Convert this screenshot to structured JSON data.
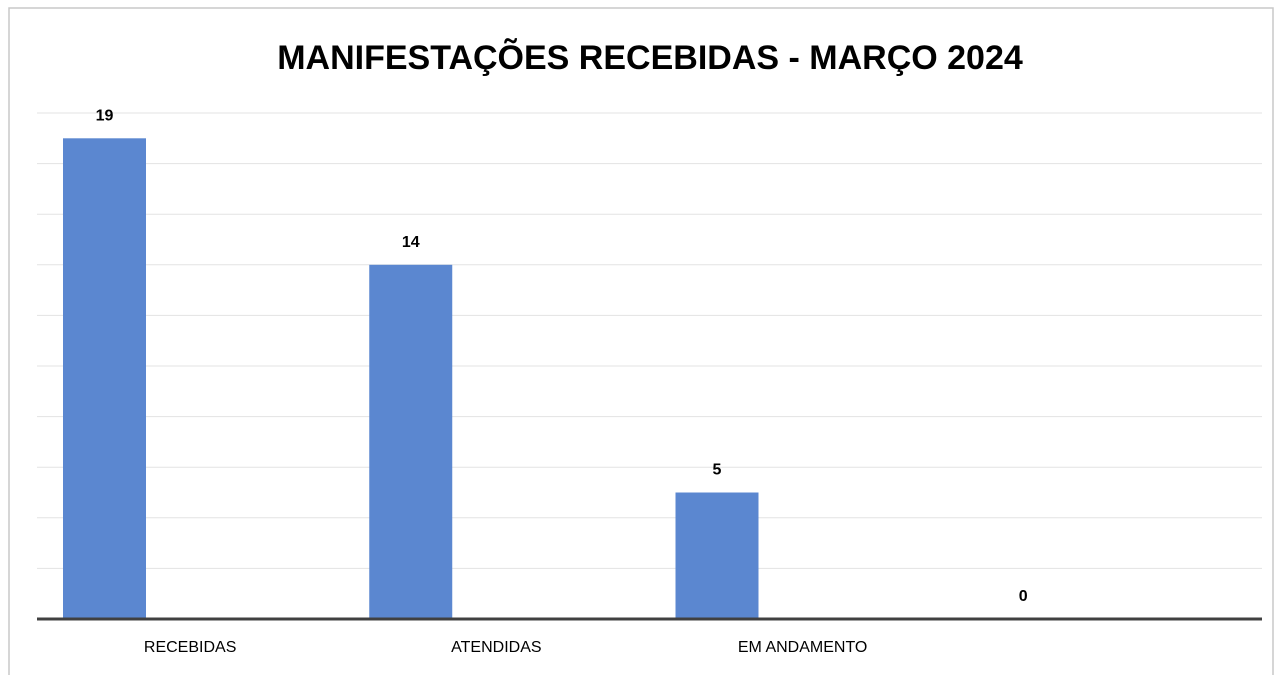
{
  "chart_data": {
    "type": "bar",
    "title": "MANIFESTAÇÕES RECEBIDAS - MARÇO 2024",
    "categories": [
      "RECEBIDAS",
      "ATENDIDAS",
      "EM ANDAMENTO",
      null
    ],
    "values": [
      19,
      14,
      5,
      0
    ],
    "color": "#5b87d0",
    "ylim": [
      0,
      20
    ],
    "yticks": [
      0,
      2,
      4,
      6,
      8,
      10,
      12,
      14,
      16,
      18,
      20
    ],
    "grid": true
  }
}
